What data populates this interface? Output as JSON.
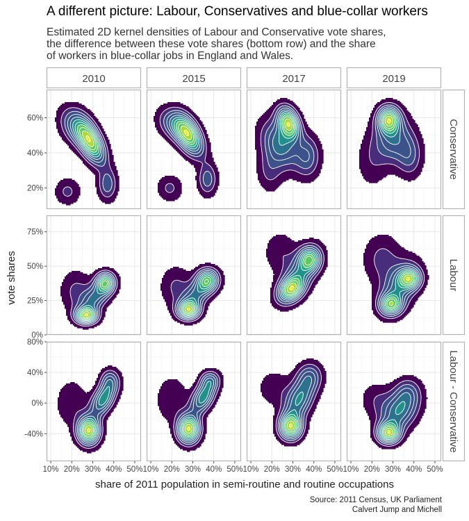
{
  "title": "A different picture: Labour, Conservatives and blue-collar workers",
  "subtitle": [
    "Estimated 2D kernel densities of Labour and Conservative vote shares,",
    "the difference between these vote shares (bottom row) and the share",
    "of workers in blue-collar jobs in England and Wales."
  ],
  "caption": [
    "Source: 2011 Census, UK Parliament",
    "Calvert Jump and Michell"
  ],
  "chart_data": {
    "type": "heatmap",
    "subtype": "2d-kernel-density-contours",
    "columns": [
      "2010",
      "2015",
      "2017",
      "2019"
    ],
    "rows": [
      "Conservative",
      "Labour",
      "Labour - Conservative"
    ],
    "xlabel": "share of 2011 population in semi-routine and routine occupations",
    "ylabel": "vote shares",
    "x_ticks": [
      "10%",
      "20%",
      "30%",
      "40%",
      "50%"
    ],
    "x_tick_values": [
      0.1,
      0.2,
      0.3,
      0.4,
      0.5
    ],
    "xlim": [
      0.08,
      0.53
    ],
    "row_axes": [
      {
        "ylim": [
          0.08,
          0.76
        ],
        "ticks": [
          0.2,
          0.4,
          0.6
        ],
        "tick_labels": [
          "20%",
          "40%",
          "60%"
        ]
      },
      {
        "ylim": [
          0.0,
          0.87
        ],
        "ticks": [
          0.0,
          0.25,
          0.5,
          0.75
        ],
        "tick_labels": [
          "0%",
          "25%",
          "50%",
          "75%"
        ]
      },
      {
        "ylim": [
          -0.76,
          0.8
        ],
        "ticks": [
          -0.4,
          0.0,
          0.4,
          0.8
        ],
        "tick_labels": [
          "-40%",
          "0%",
          "40%",
          "80%"
        ]
      }
    ],
    "colormap": [
      "#440154",
      "#472d7b",
      "#3b528b",
      "#2c728e",
      "#21918c",
      "#28ae80",
      "#5ec962",
      "#addc30",
      "#fde725"
    ],
    "contour_color": "#ffffff",
    "grid": true,
    "facet_strip_fill": "#ffffff",
    "facet_strip_border": "#b3b3b3",
    "density_peaks": [
      [
        {
          "label": "Conservative 2010",
          "components": [
            {
              "x": 0.29,
              "y": 0.46,
              "sx": 0.045,
              "sy": 0.08,
              "rho": -0.55,
              "w": 1.0
            },
            {
              "x": 0.22,
              "y": 0.55,
              "sx": 0.05,
              "sy": 0.07,
              "rho": -0.3,
              "w": 0.45
            },
            {
              "x": 0.37,
              "y": 0.22,
              "sx": 0.03,
              "sy": 0.06,
              "rho": 0.0,
              "w": 0.35
            },
            {
              "x": 0.18,
              "y": 0.18,
              "sx": 0.04,
              "sy": 0.05,
              "rho": 0.0,
              "w": 0.2
            }
          ]
        },
        {
          "label": "Conservative 2015",
          "components": [
            {
              "x": 0.28,
              "y": 0.5,
              "sx": 0.045,
              "sy": 0.075,
              "rho": -0.5,
              "w": 1.0
            },
            {
              "x": 0.21,
              "y": 0.56,
              "sx": 0.05,
              "sy": 0.06,
              "rho": -0.3,
              "w": 0.4
            },
            {
              "x": 0.37,
              "y": 0.25,
              "sx": 0.03,
              "sy": 0.06,
              "rho": 0.0,
              "w": 0.35
            },
            {
              "x": 0.19,
              "y": 0.2,
              "sx": 0.04,
              "sy": 0.05,
              "rho": 0.0,
              "w": 0.2
            }
          ]
        },
        {
          "label": "Conservative 2017",
          "components": [
            {
              "x": 0.28,
              "y": 0.57,
              "sx": 0.035,
              "sy": 0.06,
              "rho": -0.3,
              "w": 1.0
            },
            {
              "x": 0.24,
              "y": 0.45,
              "sx": 0.06,
              "sy": 0.09,
              "rho": -0.3,
              "w": 0.55
            },
            {
              "x": 0.37,
              "y": 0.38,
              "sx": 0.04,
              "sy": 0.08,
              "rho": 0.0,
              "w": 0.35
            },
            {
              "x": 0.19,
              "y": 0.3,
              "sx": 0.04,
              "sy": 0.08,
              "rho": 0.0,
              "w": 0.2
            }
          ]
        },
        {
          "label": "Conservative 2019",
          "components": [
            {
              "x": 0.28,
              "y": 0.59,
              "sx": 0.035,
              "sy": 0.05,
              "rho": 0.0,
              "w": 1.0
            },
            {
              "x": 0.3,
              "y": 0.48,
              "sx": 0.06,
              "sy": 0.09,
              "rho": 0.0,
              "w": 0.5
            },
            {
              "x": 0.38,
              "y": 0.38,
              "sx": 0.04,
              "sy": 0.08,
              "rho": 0.0,
              "w": 0.3
            },
            {
              "x": 0.2,
              "y": 0.35,
              "sx": 0.05,
              "sy": 0.1,
              "rho": 0.0,
              "w": 0.15
            }
          ]
        }
      ],
      [
        {
          "label": "Labour 2010",
          "components": [
            {
              "x": 0.36,
              "y": 0.38,
              "sx": 0.03,
              "sy": 0.05,
              "rho": 0.0,
              "w": 0.8
            },
            {
              "x": 0.27,
              "y": 0.14,
              "sx": 0.035,
              "sy": 0.04,
              "rho": 0.0,
              "w": 1.0
            },
            {
              "x": 0.31,
              "y": 0.27,
              "sx": 0.05,
              "sy": 0.08,
              "rho": 0.5,
              "w": 0.5
            },
            {
              "x": 0.22,
              "y": 0.32,
              "sx": 0.05,
              "sy": 0.1,
              "rho": 0.0,
              "w": 0.2
            }
          ]
        },
        {
          "label": "Labour 2015",
          "components": [
            {
              "x": 0.37,
              "y": 0.4,
              "sx": 0.035,
              "sy": 0.055,
              "rho": 0.0,
              "w": 0.75
            },
            {
              "x": 0.28,
              "y": 0.18,
              "sx": 0.035,
              "sy": 0.045,
              "rho": 0.0,
              "w": 1.0
            },
            {
              "x": 0.32,
              "y": 0.3,
              "sx": 0.05,
              "sy": 0.08,
              "rho": 0.5,
              "w": 0.5
            },
            {
              "x": 0.22,
              "y": 0.35,
              "sx": 0.05,
              "sy": 0.1,
              "rho": 0.0,
              "w": 0.2
            }
          ]
        },
        {
          "label": "Labour 2017",
          "components": [
            {
              "x": 0.38,
              "y": 0.55,
              "sx": 0.035,
              "sy": 0.06,
              "rho": 0.0,
              "w": 0.85
            },
            {
              "x": 0.29,
              "y": 0.33,
              "sx": 0.04,
              "sy": 0.06,
              "rho": 0.3,
              "w": 1.0
            },
            {
              "x": 0.33,
              "y": 0.44,
              "sx": 0.06,
              "sy": 0.12,
              "rho": 0.55,
              "w": 0.6
            },
            {
              "x": 0.24,
              "y": 0.6,
              "sx": 0.05,
              "sy": 0.1,
              "rho": 0.0,
              "w": 0.2
            }
          ]
        },
        {
          "label": "Labour 2019",
          "components": [
            {
              "x": 0.38,
              "y": 0.41,
              "sx": 0.035,
              "sy": 0.05,
              "rho": 0.0,
              "w": 0.9
            },
            {
              "x": 0.29,
              "y": 0.22,
              "sx": 0.035,
              "sy": 0.05,
              "rho": 0.0,
              "w": 0.9
            },
            {
              "x": 0.33,
              "y": 0.35,
              "sx": 0.06,
              "sy": 0.12,
              "rho": 0.4,
              "w": 0.6
            },
            {
              "x": 0.25,
              "y": 0.55,
              "sx": 0.06,
              "sy": 0.12,
              "rho": 0.0,
              "w": 0.25
            }
          ]
        }
      ],
      [
        {
          "label": "Labour - Conservative 2010",
          "components": [
            {
              "x": 0.28,
              "y": -0.36,
              "sx": 0.035,
              "sy": 0.12,
              "rho": 0.0,
              "w": 1.0
            },
            {
              "x": 0.35,
              "y": 0.05,
              "sx": 0.04,
              "sy": 0.15,
              "rho": 0.5,
              "w": 0.6
            },
            {
              "x": 0.38,
              "y": 0.3,
              "sx": 0.03,
              "sy": 0.1,
              "rho": 0.0,
              "w": 0.3
            },
            {
              "x": 0.2,
              "y": 0.0,
              "sx": 0.05,
              "sy": 0.2,
              "rho": 0.0,
              "w": 0.15
            }
          ]
        },
        {
          "label": "Labour - Conservative 2015",
          "components": [
            {
              "x": 0.28,
              "y": -0.34,
              "sx": 0.035,
              "sy": 0.12,
              "rho": 0.0,
              "w": 1.0
            },
            {
              "x": 0.35,
              "y": 0.08,
              "sx": 0.04,
              "sy": 0.15,
              "rho": 0.5,
              "w": 0.6
            },
            {
              "x": 0.38,
              "y": 0.3,
              "sx": 0.03,
              "sy": 0.08,
              "rho": 0.0,
              "w": 0.3
            },
            {
              "x": 0.2,
              "y": 0.05,
              "sx": 0.05,
              "sy": 0.2,
              "rho": 0.0,
              "w": 0.15
            }
          ]
        },
        {
          "label": "Labour - Conservative 2017",
          "components": [
            {
              "x": 0.29,
              "y": -0.31,
              "sx": 0.035,
              "sy": 0.11,
              "rho": 0.0,
              "w": 1.0
            },
            {
              "x": 0.33,
              "y": 0.05,
              "sx": 0.05,
              "sy": 0.2,
              "rho": 0.45,
              "w": 0.6
            },
            {
              "x": 0.38,
              "y": 0.35,
              "sx": 0.04,
              "sy": 0.12,
              "rho": 0.0,
              "w": 0.3
            },
            {
              "x": 0.21,
              "y": 0.2,
              "sx": 0.05,
              "sy": 0.15,
              "rho": 0.0,
              "w": 0.15
            }
          ]
        },
        {
          "label": "Labour - Conservative 2019",
          "components": [
            {
              "x": 0.28,
              "y": -0.39,
              "sx": 0.035,
              "sy": 0.09,
              "rho": 0.0,
              "w": 1.0
            },
            {
              "x": 0.33,
              "y": -0.1,
              "sx": 0.06,
              "sy": 0.18,
              "rho": 0.3,
              "w": 0.6
            },
            {
              "x": 0.37,
              "y": 0.15,
              "sx": 0.04,
              "sy": 0.12,
              "rho": 0.0,
              "w": 0.25
            },
            {
              "x": 0.22,
              "y": 0.05,
              "sx": 0.05,
              "sy": 0.15,
              "rho": 0.0,
              "w": 0.15
            }
          ]
        }
      ]
    ]
  }
}
